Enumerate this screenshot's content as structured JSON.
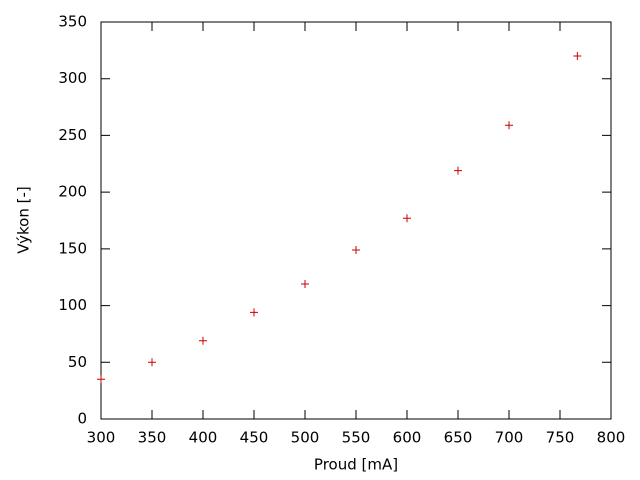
{
  "chart_data": {
    "type": "scatter",
    "x_label": "Proud [mA]",
    "y_label": "Výkon [-]",
    "x": [
      300,
      350,
      400,
      450,
      500,
      550,
      600,
      650,
      700,
      767
    ],
    "values": [
      35,
      50,
      69,
      94,
      119,
      149,
      177,
      219,
      259,
      320
    ],
    "color": "#cc0000",
    "xlim": [
      300,
      800
    ],
    "xticks": [
      300,
      350,
      400,
      450,
      500,
      550,
      600,
      650,
      700,
      750,
      800
    ],
    "ylim": [
      0,
      350
    ],
    "yticks": [
      0,
      50,
      100,
      150,
      200,
      250,
      300,
      350
    ],
    "grid": false
  }
}
